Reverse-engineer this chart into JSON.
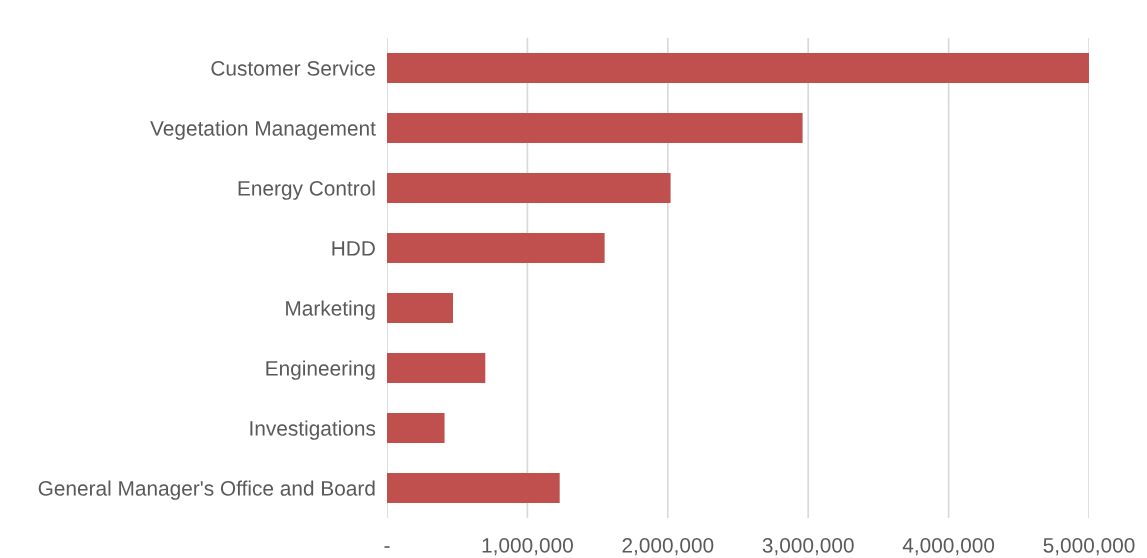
{
  "chart_data": {
    "type": "bar",
    "orientation": "horizontal",
    "categories": [
      "Customer Service",
      "Vegetation Management",
      "Energy Control",
      "HDD",
      "Marketing",
      "Engineering",
      "Investigations",
      "General Manager's Office and Board"
    ],
    "values": [
      5000000,
      2960000,
      2020000,
      1550000,
      470000,
      700000,
      410000,
      1230000
    ],
    "color": "#c0504d",
    "xlim": [
      0,
      5000000
    ],
    "xticks": [
      {
        "value": 0,
        "label": "-"
      },
      {
        "value": 1000000,
        "label": "1,000,000"
      },
      {
        "value": 2000000,
        "label": "2,000,000"
      },
      {
        "value": 3000000,
        "label": "3,000,000"
      },
      {
        "value": 4000000,
        "label": "4,000,000"
      },
      {
        "value": 5000000,
        "label": "5,000,000"
      }
    ],
    "grid": "x",
    "legend": false
  }
}
